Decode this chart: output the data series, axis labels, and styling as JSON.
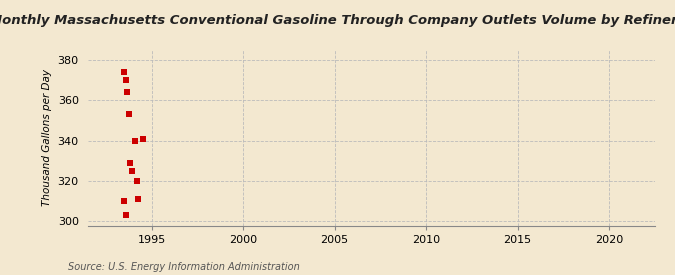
{
  "title": "Monthly Massachusetts Conventional Gasoline Through Company Outlets Volume by Refiners",
  "ylabel": "Thousand Gallons per Day",
  "xlabel": "",
  "background_color": "#f3e8d0",
  "plot_background_color": "#f3e8d0",
  "data_color": "#cc0000",
  "marker": "s",
  "marker_size": 4,
  "x_data": [
    1993.5,
    1993.58,
    1993.67,
    1993.75,
    1993.83,
    1993.92,
    1993.5,
    1993.58,
    1994.5,
    1994.08,
    1994.17,
    1994.25
  ],
  "y_data": [
    374,
    370,
    364,
    353,
    329,
    325,
    310,
    303,
    341,
    340,
    320,
    311
  ],
  "xlim": [
    1991.5,
    2022.5
  ],
  "ylim": [
    298,
    385
  ],
  "xticks": [
    1995,
    2000,
    2005,
    2010,
    2015,
    2020
  ],
  "yticks": [
    300,
    320,
    340,
    360,
    380
  ],
  "grid_color": "#bbbbbb",
  "grid_linestyle": "--",
  "source_text": "Source: U.S. Energy Information Administration",
  "title_fontsize": 9.5,
  "label_fontsize": 7.5,
  "tick_fontsize": 8,
  "source_fontsize": 7.0
}
